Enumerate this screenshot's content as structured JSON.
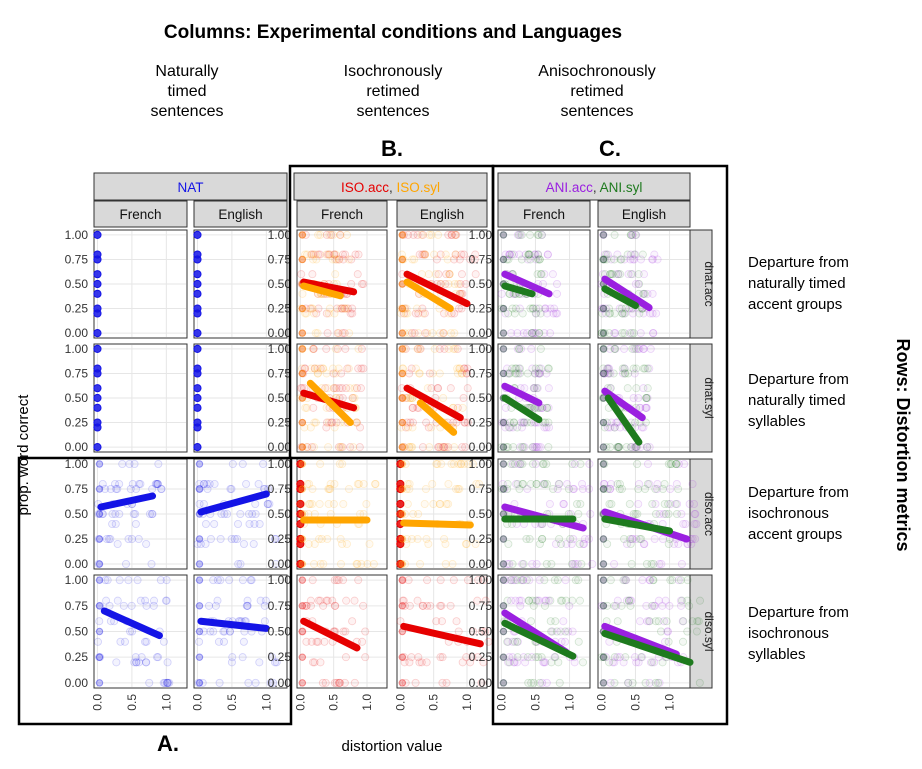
{
  "title": "Columns: Experimental conditions and Languages",
  "column_descriptions": [
    [
      "Naturally",
      "timed",
      "sentences"
    ],
    [
      "Isochronously",
      "retimed",
      "sentences"
    ],
    [
      "Anisochronously",
      "retimed",
      "sentences"
    ]
  ],
  "panel_letters_top": [
    "B.",
    "C."
  ],
  "panel_letter_bottom": "A.",
  "row_title": "Rows: Distortion metrics",
  "row_descriptions": [
    [
      "Departure from",
      "naturally timed",
      "accent groups"
    ],
    [
      "Departure from",
      "naturally timed",
      "syllables"
    ],
    [
      "Departure from",
      "isochronous",
      "accent groups"
    ],
    [
      "Departure from",
      "isochronous",
      "syllables"
    ]
  ],
  "colors": {
    "NAT": "#1414e6",
    "ISO.acc": "#e60000",
    "ISO.syl": "#ffa500",
    "ANI.acc": "#9a20e0",
    "ANI.syl": "#1e7a1e",
    "strip_bg": "#d9d9d9",
    "grid": "#e6e6e6"
  },
  "chart_data": {
    "type": "scatter",
    "xlabel": "distortion value",
    "ylabel": "prop. word correct",
    "x_ticks": [
      "0.0",
      "0.5",
      "1.0"
    ],
    "y_ticks": [
      "1.00",
      "0.75",
      "0.50",
      "0.25",
      "0.00"
    ],
    "xlim": [
      -0.05,
      1.3
    ],
    "ylim": [
      -0.05,
      1.05
    ],
    "condition_groups": [
      {
        "label_parts": [
          {
            "text": "NAT",
            "key": "NAT"
          }
        ]
      },
      {
        "label_parts": [
          {
            "text": "ISO.acc",
            "key": "ISO.acc"
          },
          {
            "text": ", ",
            "key": null
          },
          {
            "text": "ISO.syl",
            "key": "ISO.syl"
          }
        ]
      },
      {
        "label_parts": [
          {
            "text": "ANI.acc",
            "key": "ANI.acc"
          },
          {
            "text": ", ",
            "key": null
          },
          {
            "text": "ANI.syl",
            "key": "ANI.syl"
          }
        ]
      }
    ],
    "languages": [
      "French",
      "English"
    ],
    "metrics": [
      "dnat.acc",
      "dnat.syl",
      "diso.acc",
      "diso.syl"
    ],
    "fit_lines": [
      [
        [
          [
            {
              "key": "NAT",
              "x": [
                0.0,
                0.0
              ],
              "y": [
                0.0,
                1.0
              ],
              "points_only": true
            }
          ],
          [
            {
              "key": "NAT",
              "x": [
                0.0,
                0.0
              ],
              "y": [
                0.0,
                1.0
              ],
              "points_only": true
            }
          ]
        ],
        [
          [
            {
              "key": "ISO.acc",
              "x": [
                0.05,
                0.8
              ],
              "y": [
                0.52,
                0.42
              ]
            },
            {
              "key": "ISO.syl",
              "x": [
                0.05,
                0.6
              ],
              "y": [
                0.48,
                0.38
              ]
            }
          ],
          [
            {
              "key": "ISO.acc",
              "x": [
                0.1,
                1.0
              ],
              "y": [
                0.6,
                0.3
              ]
            },
            {
              "key": "ISO.syl",
              "x": [
                0.1,
                0.75
              ],
              "y": [
                0.52,
                0.25
              ]
            }
          ]
        ],
        [
          [
            {
              "key": "ANI.acc",
              "x": [
                0.05,
                0.7
              ],
              "y": [
                0.6,
                0.4
              ]
            },
            {
              "key": "ANI.syl",
              "x": [
                0.05,
                0.45
              ],
              "y": [
                0.48,
                0.4
              ]
            }
          ],
          [
            {
              "key": "ANI.acc",
              "x": [
                0.05,
                0.7
              ],
              "y": [
                0.55,
                0.26
              ]
            },
            {
              "key": "ANI.syl",
              "x": [
                0.05,
                0.5
              ],
              "y": [
                0.45,
                0.28
              ]
            }
          ]
        ]
      ],
      [
        [
          [
            {
              "key": "NAT",
              "x": [
                0.0,
                0.0
              ],
              "y": [
                0.0,
                1.0
              ],
              "points_only": true
            }
          ],
          [
            {
              "key": "NAT",
              "x": [
                0.0,
                0.0
              ],
              "y": [
                0.0,
                1.0
              ],
              "points_only": true
            }
          ]
        ],
        [
          [
            {
              "key": "ISO.acc",
              "x": [
                0.05,
                0.8
              ],
              "y": [
                0.55,
                0.4
              ]
            },
            {
              "key": "ISO.syl",
              "x": [
                0.15,
                0.75
              ],
              "y": [
                0.65,
                0.25
              ]
            }
          ],
          [
            {
              "key": "ISO.acc",
              "x": [
                0.1,
                0.9
              ],
              "y": [
                0.6,
                0.3
              ]
            },
            {
              "key": "ISO.syl",
              "x": [
                0.3,
                0.8
              ],
              "y": [
                0.45,
                0.15
              ]
            }
          ]
        ],
        [
          [
            {
              "key": "ANI.acc",
              "x": [
                0.05,
                0.55
              ],
              "y": [
                0.62,
                0.45
              ]
            },
            {
              "key": "ANI.syl",
              "x": [
                0.05,
                0.55
              ],
              "y": [
                0.5,
                0.28
              ]
            }
          ],
          [
            {
              "key": "ANI.acc",
              "x": [
                0.05,
                0.6
              ],
              "y": [
                0.57,
                0.3
              ]
            },
            {
              "key": "ANI.syl",
              "x": [
                0.1,
                0.55
              ],
              "y": [
                0.5,
                0.05
              ]
            }
          ]
        ]
      ],
      [
        [
          [
            {
              "key": "NAT",
              "x": [
                0.05,
                0.8
              ],
              "y": [
                0.57,
                0.68
              ]
            }
          ],
          [
            {
              "key": "NAT",
              "x": [
                0.05,
                1.0
              ],
              "y": [
                0.52,
                0.7
              ]
            }
          ]
        ],
        [
          [
            {
              "key": "ISO.acc",
              "x": [
                0.0,
                0.0
              ],
              "y": [
                0.0,
                1.0
              ],
              "points_only": true
            },
            {
              "key": "ISO.syl",
              "x": [
                0.05,
                1.0
              ],
              "y": [
                0.44,
                0.44
              ]
            }
          ],
          [
            {
              "key": "ISO.acc",
              "x": [
                0.0,
                0.0
              ],
              "y": [
                0.0,
                1.0
              ],
              "points_only": true
            },
            {
              "key": "ISO.syl",
              "x": [
                0.05,
                1.05
              ],
              "y": [
                0.41,
                0.39
              ]
            }
          ]
        ],
        [
          [
            {
              "key": "ANI.acc",
              "x": [
                0.05,
                1.2
              ],
              "y": [
                0.57,
                0.36
              ]
            },
            {
              "key": "ANI.syl",
              "x": [
                0.05,
                1.05
              ],
              "y": [
                0.45,
                0.45
              ]
            }
          ],
          [
            {
              "key": "ANI.acc",
              "x": [
                0.05,
                1.25
              ],
              "y": [
                0.52,
                0.25
              ]
            },
            {
              "key": "ANI.syl",
              "x": [
                0.05,
                1.0
              ],
              "y": [
                0.45,
                0.33
              ]
            }
          ]
        ]
      ],
      [
        [
          [
            {
              "key": "NAT",
              "x": [
                0.1,
                0.9
              ],
              "y": [
                0.7,
                0.46
              ]
            }
          ],
          [
            {
              "key": "NAT",
              "x": [
                0.05,
                1.0
              ],
              "y": [
                0.6,
                0.53
              ]
            }
          ]
        ],
        [
          [
            {
              "key": "ISO.acc",
              "x": [
                0.05,
                0.85
              ],
              "y": [
                0.6,
                0.34
              ]
            }
          ],
          [
            {
              "key": "ISO.acc",
              "x": [
                0.05,
                1.2
              ],
              "y": [
                0.55,
                0.38
              ]
            }
          ]
        ],
        [
          [
            {
              "key": "ANI.acc",
              "x": [
                0.05,
                0.95
              ],
              "y": [
                0.68,
                0.3
              ]
            },
            {
              "key": "ANI.syl",
              "x": [
                0.05,
                1.05
              ],
              "y": [
                0.58,
                0.26
              ]
            }
          ],
          [
            {
              "key": "ANI.acc",
              "x": [
                0.05,
                1.1
              ],
              "y": [
                0.55,
                0.28
              ]
            },
            {
              "key": "ANI.syl",
              "x": [
                0.05,
                1.3
              ],
              "y": [
                0.48,
                0.2
              ]
            }
          ]
        ]
      ]
    ]
  }
}
